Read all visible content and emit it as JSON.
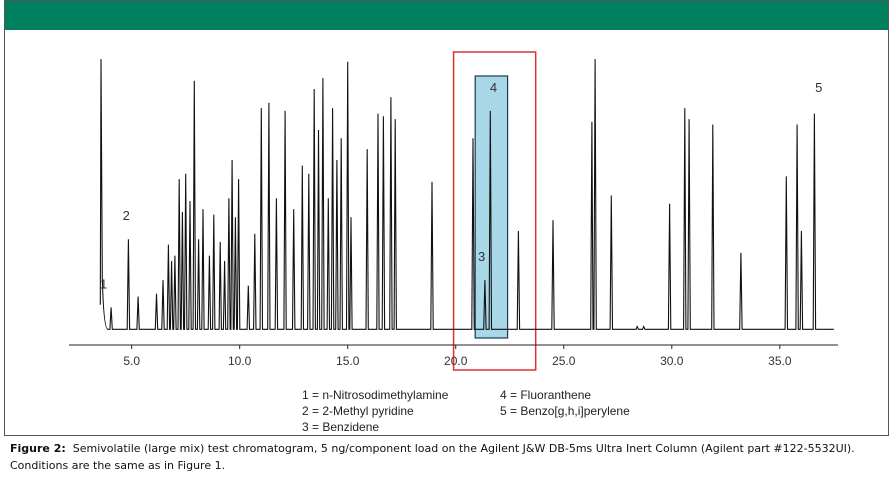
{
  "chart_data": {
    "type": "line",
    "x_ticks": [
      "5.0",
      "10.0",
      "15.0",
      "20.0",
      "25.0",
      "30.0",
      "35.0"
    ],
    "xlim": [
      2.1,
      37.6
    ],
    "ylim": [
      0,
      100
    ],
    "baseline": 1,
    "peaks": [
      {
        "x": 3.6,
        "y": 100
      },
      {
        "x": 4.05,
        "y": 9
      },
      {
        "x": 4.85,
        "y": 34
      },
      {
        "x": 5.3,
        "y": 13
      },
      {
        "x": 6.15,
        "y": 14
      },
      {
        "x": 6.45,
        "y": 19
      },
      {
        "x": 6.7,
        "y": 32
      },
      {
        "x": 6.85,
        "y": 26
      },
      {
        "x": 7.0,
        "y": 28
      },
      {
        "x": 7.2,
        "y": 56
      },
      {
        "x": 7.35,
        "y": 44
      },
      {
        "x": 7.5,
        "y": 58
      },
      {
        "x": 7.7,
        "y": 48
      },
      {
        "x": 7.9,
        "y": 92
      },
      {
        "x": 8.1,
        "y": 34
      },
      {
        "x": 8.3,
        "y": 45
      },
      {
        "x": 8.6,
        "y": 28
      },
      {
        "x": 8.8,
        "y": 43
      },
      {
        "x": 9.1,
        "y": 33
      },
      {
        "x": 9.3,
        "y": 26
      },
      {
        "x": 9.5,
        "y": 49
      },
      {
        "x": 9.65,
        "y": 63
      },
      {
        "x": 9.8,
        "y": 42
      },
      {
        "x": 9.95,
        "y": 56
      },
      {
        "x": 10.4,
        "y": 17
      },
      {
        "x": 10.7,
        "y": 36
      },
      {
        "x": 11.0,
        "y": 82
      },
      {
        "x": 11.35,
        "y": 84
      },
      {
        "x": 11.7,
        "y": 49
      },
      {
        "x": 12.1,
        "y": 81
      },
      {
        "x": 12.5,
        "y": 45
      },
      {
        "x": 12.9,
        "y": 61
      },
      {
        "x": 13.2,
        "y": 58
      },
      {
        "x": 13.45,
        "y": 89
      },
      {
        "x": 13.65,
        "y": 74
      },
      {
        "x": 13.85,
        "y": 93
      },
      {
        "x": 14.1,
        "y": 49
      },
      {
        "x": 14.3,
        "y": 82
      },
      {
        "x": 14.5,
        "y": 63
      },
      {
        "x": 14.7,
        "y": 71
      },
      {
        "x": 15.0,
        "y": 99
      },
      {
        "x": 15.15,
        "y": 42
      },
      {
        "x": 15.9,
        "y": 67
      },
      {
        "x": 16.4,
        "y": 80
      },
      {
        "x": 16.65,
        "y": 79
      },
      {
        "x": 17.0,
        "y": 86
      },
      {
        "x": 17.2,
        "y": 78
      },
      {
        "x": 18.9,
        "y": 55
      },
      {
        "x": 20.8,
        "y": 71
      },
      {
        "x": 21.35,
        "y": 19
      },
      {
        "x": 21.6,
        "y": 81
      },
      {
        "x": 22.9,
        "y": 37
      },
      {
        "x": 24.5,
        "y": 41
      },
      {
        "x": 26.3,
        "y": 77
      },
      {
        "x": 26.45,
        "y": 100
      },
      {
        "x": 27.2,
        "y": 50
      },
      {
        "x": 28.4,
        "y": 2
      },
      {
        "x": 28.7,
        "y": 2
      },
      {
        "x": 29.9,
        "y": 47
      },
      {
        "x": 30.6,
        "y": 82
      },
      {
        "x": 30.8,
        "y": 78
      },
      {
        "x": 31.9,
        "y": 76
      },
      {
        "x": 33.2,
        "y": 29
      },
      {
        "x": 35.3,
        "y": 57
      },
      {
        "x": 35.8,
        "y": 76
      },
      {
        "x": 36.0,
        "y": 37
      },
      {
        "x": 36.6,
        "y": 80
      }
    ],
    "annotations": [
      {
        "label": "1",
        "x": 3.7,
        "y": 16
      },
      {
        "label": "2",
        "x": 4.75,
        "y": 41
      },
      {
        "label": "3",
        "x": 21.2,
        "y": 26
      },
      {
        "label": "4",
        "x": 21.75,
        "y": 88
      },
      {
        "label": "5",
        "x": 36.8,
        "y": 88
      }
    ],
    "legend": {
      "col1": [
        "1 = n-Nitrosodimethylamine",
        "2 = 2-Methyl pyridine",
        "3 = Benzidene"
      ],
      "col2": [
        "4 = Fluoranthene",
        "5 = Benzo[g,h,i]perylene"
      ]
    },
    "highlight": {
      "outer_red_box_x": [
        19.9,
        23.7
      ],
      "inner_blue_box_x": [
        20.9,
        22.4
      ]
    },
    "colors": {
      "trace": "#111111",
      "red_box": "#e03030",
      "blue_fill": "#a8d8e8",
      "blue_border": "#1a3a55",
      "topbar": "#00805f"
    }
  },
  "caption": {
    "label": "Figure 2:",
    "text": "Semivolatile (large mix) test chromatogram, 5 ng/component load on the Agilent J&W DB-5ms Ultra Inert Column (Agilent part #122-5532UI). Conditions are the same as in Figure 1."
  }
}
